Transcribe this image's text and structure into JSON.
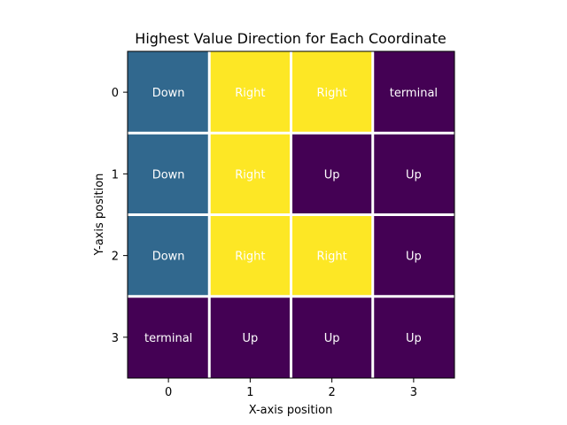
{
  "chart_data": {
    "type": "heatmap",
    "title": "Highest Value Direction for Each Coordinate",
    "xlabel": "X-axis position",
    "ylabel": "Y-axis position",
    "x_ticks": [
      "0",
      "1",
      "2",
      "3"
    ],
    "y_ticks": [
      "0",
      "1",
      "2",
      "3"
    ],
    "colormap": {
      "Down": "#31688e",
      "Right": "#fde725",
      "Up": "#440154",
      "terminal": "#440154"
    },
    "grid_color": "#ffffff",
    "cells": [
      [
        "Down",
        "Right",
        "Right",
        "terminal"
      ],
      [
        "Down",
        "Right",
        "Up",
        "Up"
      ],
      [
        "Down",
        "Right",
        "Right",
        "Up"
      ],
      [
        "terminal",
        "Up",
        "Up",
        "Up"
      ]
    ]
  }
}
